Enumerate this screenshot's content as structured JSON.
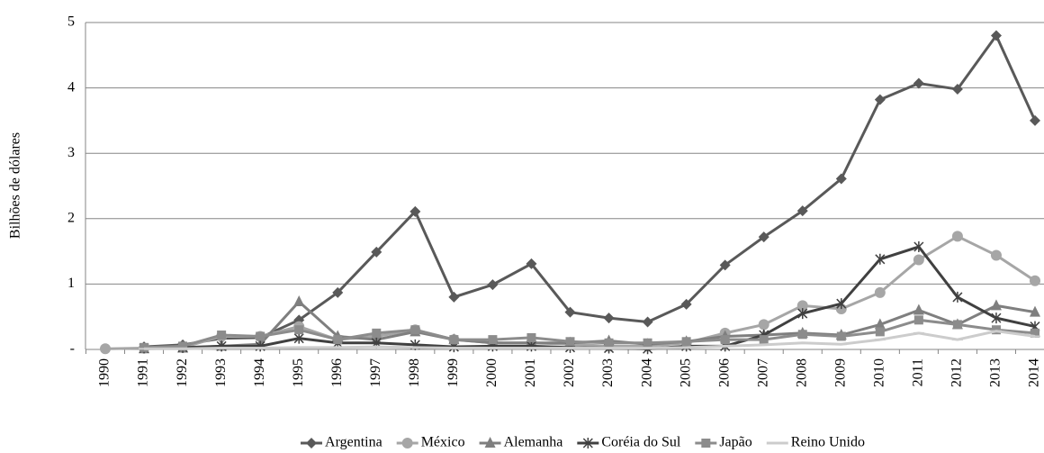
{
  "chart_data": {
    "type": "line",
    "y_label": "Bilhões de dólares",
    "categories": [
      "1990",
      "1991",
      "1992",
      "1993",
      "1994",
      "1995",
      "1996",
      "1997",
      "1998",
      "1999",
      "2000",
      "2001",
      "2002",
      "2003",
      "2004",
      "2005",
      "2006",
      "2007",
      "2008",
      "2009",
      "2010",
      "2011",
      "2012",
      "2013",
      "2014"
    ],
    "ylim": [
      0,
      5
    ],
    "yticks": [
      {
        "value": 0,
        "label": "-"
      },
      1,
      2,
      3,
      4,
      5
    ],
    "grid": true,
    "legend": "bottom",
    "series": [
      {
        "name": "Argentina",
        "color": "#595959",
        "marker": "diamond",
        "values": [
          null,
          0.04,
          0.07,
          0.17,
          0.18,
          0.45,
          0.87,
          1.49,
          2.11,
          0.8,
          0.99,
          1.31,
          0.57,
          0.48,
          0.42,
          0.69,
          1.29,
          1.72,
          2.12,
          2.61,
          3.82,
          4.07,
          3.98,
          4.8,
          3.5
        ]
      },
      {
        "name": "México",
        "color": "#a6a6a6",
        "marker": "circle",
        "values": [
          0.01,
          0.02,
          0.03,
          0.2,
          0.2,
          0.35,
          0.15,
          0.2,
          0.3,
          0.15,
          0.1,
          0.1,
          0.08,
          0.05,
          0.05,
          0.1,
          0.25,
          0.38,
          0.67,
          0.62,
          0.87,
          1.37,
          1.73,
          1.44,
          1.05
        ]
      },
      {
        "name": "Alemanha",
        "color": "#7f7f7f",
        "marker": "triangle",
        "values": [
          null,
          0.01,
          0.02,
          0.05,
          0.08,
          0.73,
          0.2,
          0.15,
          0.27,
          0.15,
          0.1,
          0.1,
          0.1,
          0.13,
          0.08,
          0.12,
          0.2,
          0.22,
          0.25,
          0.22,
          0.38,
          0.6,
          0.38,
          0.67,
          0.57
        ]
      },
      {
        "name": "Coréia do Sul",
        "color": "#404040",
        "marker": "star",
        "values": [
          null,
          0.02,
          0.03,
          0.05,
          0.05,
          0.17,
          0.1,
          0.1,
          0.07,
          0.04,
          0.05,
          0.05,
          0.03,
          0.02,
          0.01,
          0.05,
          0.05,
          0.22,
          0.55,
          0.7,
          1.38,
          1.57,
          0.8,
          0.48,
          0.35
        ]
      },
      {
        "name": "Japão",
        "color": "#8c8c8c",
        "marker": "square",
        "values": [
          null,
          0.03,
          0.05,
          0.22,
          0.2,
          0.3,
          0.15,
          0.25,
          0.3,
          0.15,
          0.15,
          0.18,
          0.12,
          0.1,
          0.1,
          0.12,
          0.15,
          0.15,
          0.23,
          0.2,
          0.27,
          0.45,
          0.38,
          0.3,
          0.25
        ]
      },
      {
        "name": "Reino Unido",
        "color": "#cccccc",
        "marker": "plus",
        "values": [
          null,
          0.01,
          0.01,
          0.02,
          0.02,
          0.03,
          0.03,
          0.04,
          0.03,
          0.02,
          0.02,
          0.02,
          0.02,
          0.02,
          0.02,
          0.03,
          0.05,
          0.07,
          0.1,
          0.08,
          0.15,
          0.25,
          0.15,
          0.28,
          0.2
        ]
      }
    ]
  }
}
